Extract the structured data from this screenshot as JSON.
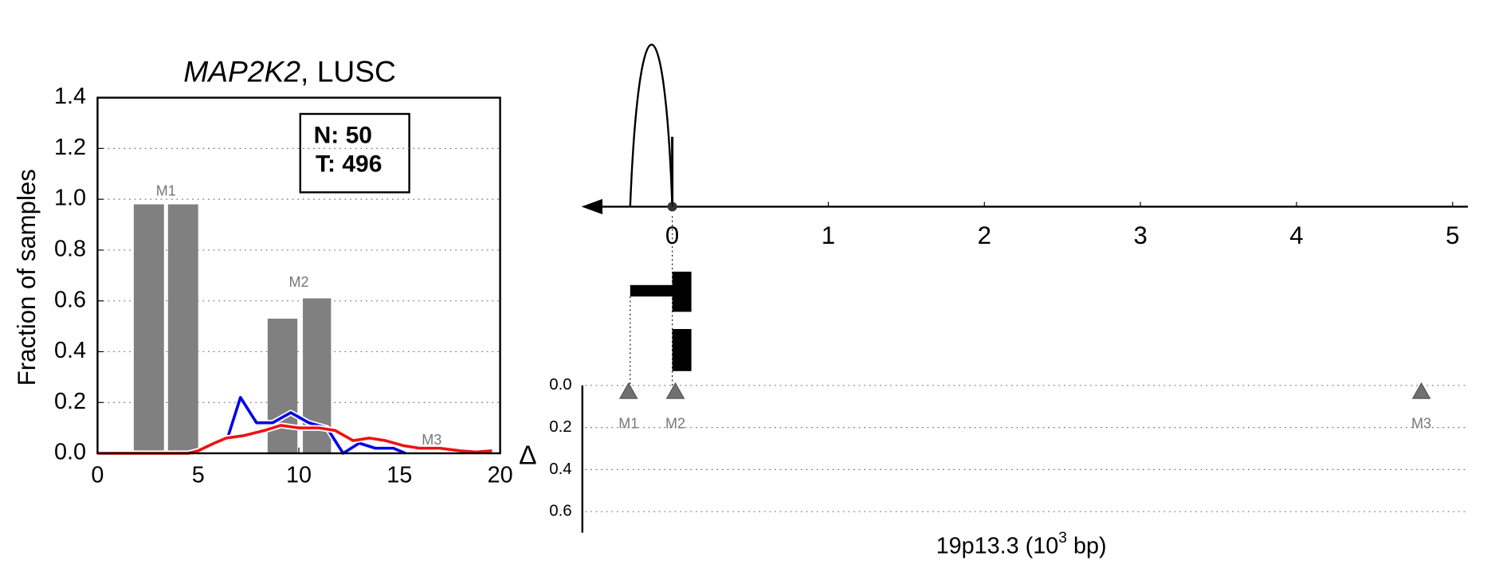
{
  "chart_data": [
    {
      "type": "bar",
      "title_parts": [
        "MAP2K2",
        ", LUSC"
      ],
      "ylabel": "Fraction of samples",
      "xlim": [
        0,
        20
      ],
      "xticks": [
        0,
        5,
        10,
        15,
        20
      ],
      "ylim": [
        0,
        1.4
      ],
      "yticks": [
        {
          "value": 0,
          "label": "0.0"
        },
        0.2,
        0.4,
        0.6,
        0.8,
        {
          "value": 1,
          "label": "1.0"
        },
        1.2,
        1.4
      ],
      "grid": true,
      "legend_text": [
        "N: 50",
        "T: 496"
      ],
      "bars": {
        "color": "#808080",
        "x0": [
          1.8,
          3.5,
          8.45,
          10.2
        ],
        "x1": [
          3.3,
          5.0,
          9.93,
          11.6
        ],
        "values": [
          0.98,
          0.98,
          0.53,
          0.61
        ]
      },
      "annotations": [
        {
          "text": "M1",
          "x": 3.4,
          "y": 1.03
        },
        {
          "text": "M2",
          "x": 10.0,
          "y": 0.67
        },
        {
          "text": "M3",
          "x": 16.6,
          "y": 0.05
        }
      ],
      "series": [
        {
          "color": "#0000ee",
          "x": [
            6.5,
            7.1,
            7.9,
            8.7,
            9.6,
            10.5,
            11.4,
            12.2,
            13.0,
            13.8,
            14.7,
            15.3
          ],
          "values": [
            0.07,
            0.22,
            0.12,
            0.12,
            0.16,
            0.12,
            0.1,
            0.0,
            0.04,
            0.02,
            0.02,
            0.0
          ]
        },
        {
          "color": "#ee1111",
          "x": [
            0,
            4.5,
            5.0,
            5.8,
            6.4,
            7.3,
            8.3,
            9.1,
            10.0,
            11.0,
            11.8,
            12.7,
            13.5,
            14.3,
            15.2,
            16.0,
            17.0,
            18.0,
            18.8,
            19.6
          ],
          "values": [
            0,
            0,
            0.01,
            0.04,
            0.06,
            0.07,
            0.09,
            0.11,
            0.1,
            0.1,
            0.09,
            0.05,
            0.06,
            0.05,
            0.03,
            0.02,
            0.02,
            0.01,
            0.005,
            0.01
          ]
        }
      ]
    },
    {
      "type": "scatter",
      "xlim": [
        -0.57,
        5.1
      ],
      "xticks": [
        0,
        1,
        2,
        3,
        4,
        5
      ],
      "ylim": [
        0,
        0.7
      ],
      "yticks": [
        {
          "value": 0,
          "label": "0.0"
        },
        0.2,
        0.4,
        0.6
      ],
      "ylabel": "Δ",
      "xlabel_parts": [
        "19p13.3 (10",
        "3",
        " bp)"
      ],
      "points": {
        "color": "#707070",
        "x": [
          -0.28,
          0.02,
          4.8
        ],
        "values": [
          0.03,
          0.03,
          0.03
        ],
        "labels": [
          "M1",
          "M2",
          "M3"
        ]
      }
    }
  ]
}
